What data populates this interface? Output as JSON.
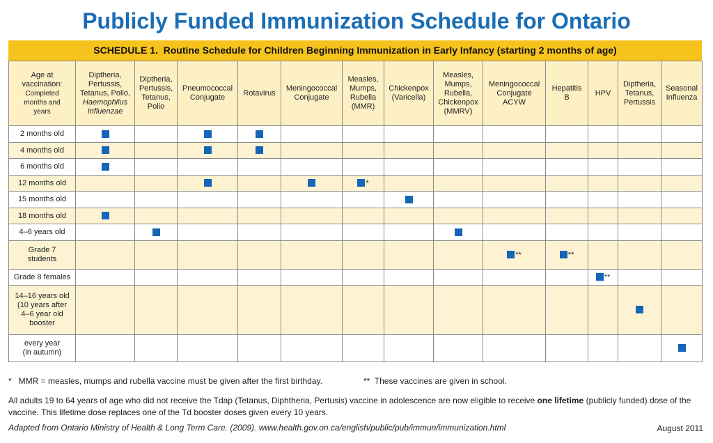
{
  "header": {
    "title": "Publicly Funded Immunization Schedule for Ontario",
    "schedule": "SCHEDULE 1.  Routine Schedule for Children Beginning Immunization in Early Infancy (starting 2 months of age)"
  },
  "table": {
    "corner": {
      "lines": [
        "Age at",
        "vaccination:"
      ],
      "small_lines": [
        "Completed",
        "months and",
        "years"
      ]
    },
    "columns": [
      {
        "lines": [
          "Diptheria,",
          "Pertussis,",
          "Tetanus, Polio,"
        ],
        "italic_lines": [
          "Haemophilus",
          "Influenzae"
        ]
      },
      {
        "lines": [
          "Diptheria,",
          "Pertussis,",
          "Tetanus,",
          "Polio"
        ]
      },
      {
        "lines": [
          "Pneumococcal",
          "Conjugate"
        ]
      },
      {
        "lines": [
          "Rotavirus"
        ]
      },
      {
        "lines": [
          "Meningococcal",
          "Conjugate"
        ]
      },
      {
        "lines": [
          "Measles,",
          "Mumps,",
          "Rubella",
          "(MMR)"
        ]
      },
      {
        "lines": [
          "Chickenpox",
          "(Varicella)"
        ]
      },
      {
        "lines": [
          "Measles,",
          "Mumps,",
          "Rubella,",
          "Chickenpox",
          "(MMRV)"
        ]
      },
      {
        "lines": [
          "Meningococcal",
          "Conjugate",
          "ACYW"
        ]
      },
      {
        "lines": [
          "Hepatitis",
          "B"
        ]
      },
      {
        "lines": [
          "HPV"
        ]
      },
      {
        "lines": [
          "Diptheria,",
          "Tetanus,",
          "Pertussis"
        ]
      },
      {
        "lines": [
          "Seasonal",
          "Influenza"
        ]
      }
    ],
    "rows": [
      {
        "label": [
          "2 months old"
        ],
        "doses": [
          {
            "col": 0
          },
          {
            "col": 2
          },
          {
            "col": 3
          }
        ]
      },
      {
        "label": [
          "4 months old"
        ],
        "doses": [
          {
            "col": 0
          },
          {
            "col": 2
          },
          {
            "col": 3
          }
        ]
      },
      {
        "label": [
          "6 months old"
        ],
        "doses": [
          {
            "col": 0
          }
        ]
      },
      {
        "label": [
          "12 months old"
        ],
        "doses": [
          {
            "col": 2
          },
          {
            "col": 4
          },
          {
            "col": 5,
            "note": "*"
          }
        ]
      },
      {
        "label": [
          "15 months old"
        ],
        "doses": [
          {
            "col": 6
          }
        ]
      },
      {
        "label": [
          "18 months old"
        ],
        "doses": [
          {
            "col": 0
          }
        ]
      },
      {
        "label": [
          "4–6 years old"
        ],
        "doses": [
          {
            "col": 1
          },
          {
            "col": 7
          }
        ]
      },
      {
        "label": [
          "Grade 7",
          "students"
        ],
        "doses": [
          {
            "col": 8,
            "note": "**"
          },
          {
            "col": 9,
            "note": "**"
          }
        ]
      },
      {
        "label": [
          "Grade 8 females"
        ],
        "doses": [
          {
            "col": 10,
            "note": "**"
          }
        ]
      },
      {
        "label": [
          "14–16 years old",
          "(10 years after",
          "4–6 year old",
          "booster"
        ],
        "doses": [
          {
            "col": 11
          }
        ]
      },
      {
        "label": [
          "every year",
          "(in autumn)"
        ],
        "doses": [
          {
            "col": 12
          }
        ]
      }
    ]
  },
  "footnotes": {
    "mmr": "*   MMR = measles, mumps and rubella vaccine must be given after the first birthday.",
    "school": "**  These vaccines are given in school.",
    "adults": [
      "All adults 19 to 64 years of age who did not receive the Tdap (Tetanus, Diphtheria, Pertusis) vaccine in adolescence are now eligible to receive ",
      "one lifetime",
      " (publicly funded) dose of the vaccine. This lifetime dose replaces one of the Td booster doses given every 10 years."
    ],
    "source": "Adapted from Ontario Ministry of Health & Long Term Care. (2009). www.health.gov.on.ca/english/public/pub/immun/immunization.html",
    "date": "August 2011"
  }
}
